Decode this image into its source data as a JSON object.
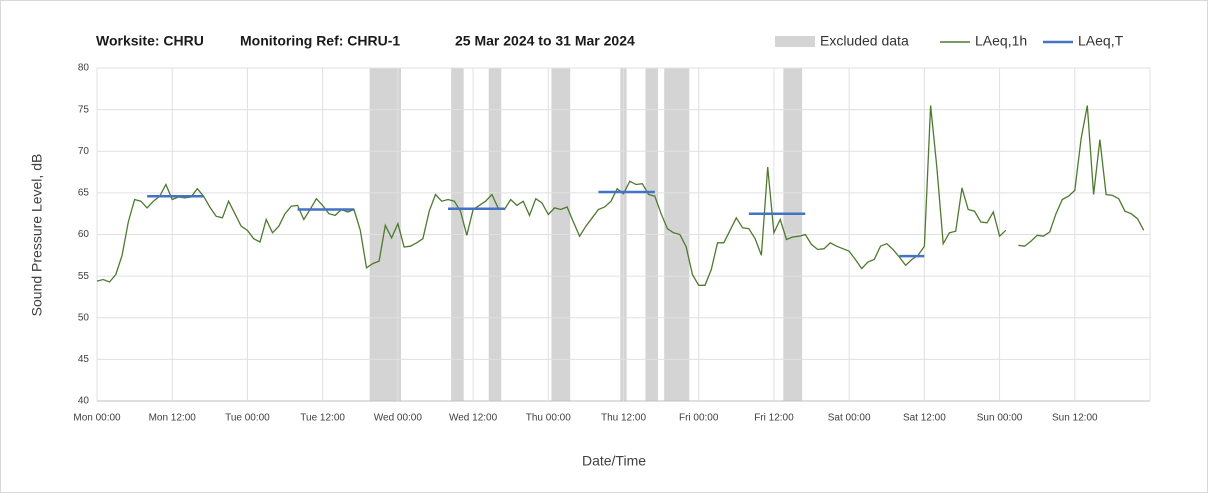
{
  "chart_data": {
    "type": "line",
    "title_parts": [
      "Worksite: CHRU",
      "Monitoring Ref: CHRU-1",
      "25 Mar 2024 to 31 Mar 2024"
    ],
    "x_label": "Date/Time",
    "y_label": "Sound Pressure Level, dB",
    "xlim": [
      0,
      168
    ],
    "xticks": [
      {
        "value": 0,
        "label": "Mon 00:00"
      },
      {
        "value": 12,
        "label": "Mon 12:00"
      },
      {
        "value": 24,
        "label": "Tue 00:00"
      },
      {
        "value": 36,
        "label": "Tue 12:00"
      },
      {
        "value": 48,
        "label": "Wed 00:00"
      },
      {
        "value": 60,
        "label": "Wed 12:00"
      },
      {
        "value": 72,
        "label": "Thu 00:00"
      },
      {
        "value": 84,
        "label": "Thu 12:00"
      },
      {
        "value": 96,
        "label": "Fri 00:00"
      },
      {
        "value": 108,
        "label": "Fri 12:00"
      },
      {
        "value": 120,
        "label": "Sat 00:00"
      },
      {
        "value": 132,
        "label": "Sat 12:00"
      },
      {
        "value": 144,
        "label": "Sun 00:00"
      },
      {
        "value": 156,
        "label": "Sun 12:00"
      }
    ],
    "ylim": [
      40,
      80
    ],
    "yticks": [
      40,
      45,
      50,
      55,
      60,
      65,
      70,
      75,
      80
    ],
    "grid": true,
    "excluded": {
      "name": "Excluded data",
      "color": "#d4d4d4",
      "ranges": [
        [
          43.5,
          48.5
        ],
        [
          56.5,
          58.5
        ],
        [
          62.5,
          64.5
        ],
        [
          72.5,
          75.5
        ],
        [
          83.5,
          84.5
        ],
        [
          87.5,
          89.5
        ],
        [
          90.5,
          94.5
        ],
        [
          109.5,
          112.5
        ]
      ]
    },
    "series": [
      {
        "name": "LAeq,1h",
        "color": "#4e7a2e",
        "x": [
          0,
          1,
          2,
          3,
          4,
          5,
          6,
          7,
          8,
          9,
          10,
          11,
          12,
          13,
          14,
          15,
          16,
          17,
          18,
          19,
          20,
          21,
          22,
          23,
          24,
          25,
          26,
          27,
          28,
          29,
          30,
          31,
          32,
          33,
          34,
          35,
          36,
          37,
          38,
          39,
          40,
          41,
          42,
          43,
          44,
          45,
          46,
          47,
          48,
          49,
          50,
          51,
          52,
          53,
          54,
          55,
          56,
          57,
          58,
          59,
          60,
          61,
          62,
          63,
          64,
          65,
          66,
          67,
          68,
          69,
          70,
          71,
          72,
          73,
          74,
          75,
          76,
          77,
          78,
          79,
          80,
          81,
          82,
          83,
          84,
          85,
          86,
          87,
          88,
          89,
          90,
          91,
          92,
          93,
          94,
          95,
          96,
          97,
          98,
          99,
          100,
          101,
          102,
          103,
          104,
          105,
          106,
          107,
          108,
          109,
          110,
          111,
          112,
          113,
          114,
          115,
          116,
          117,
          118,
          119,
          120,
          121,
          122,
          123,
          124,
          125,
          126,
          127,
          128,
          129,
          130,
          131,
          132,
          133,
          134,
          135,
          136,
          137,
          138,
          139,
          140,
          141,
          142,
          143,
          144,
          145,
          146,
          147,
          148,
          149,
          150,
          151,
          152,
          153,
          154,
          155,
          156,
          157,
          158,
          159,
          160,
          161,
          162,
          163,
          164,
          165,
          166,
          167
        ],
        "values": [
          54.4,
          54.6,
          54.3,
          55.2,
          57.5,
          61.5,
          64.2,
          64.0,
          63.2,
          64.0,
          64.6,
          66.0,
          64.2,
          64.5,
          64.4,
          64.5,
          65.5,
          64.6,
          63.3,
          62.2,
          62.0,
          64.0,
          62.5,
          61.0,
          60.5,
          59.5,
          59.1,
          61.8,
          60.2,
          61.0,
          62.5,
          63.4,
          63.5,
          61.8,
          63.0,
          64.3,
          63.5,
          62.5,
          62.3,
          63.0,
          62.7,
          63.0,
          60.5,
          56.0,
          56.5,
          56.8,
          61.1,
          59.6,
          61.3,
          58.5,
          58.6,
          59.0,
          59.5,
          62.8,
          64.8,
          64.0,
          64.2,
          64.0,
          62.8,
          59.9,
          63.0,
          63.5,
          64.0,
          64.8,
          63.2,
          63.0,
          64.2,
          63.5,
          64.0,
          62.3,
          64.3,
          63.8,
          62.4,
          63.2,
          63.0,
          63.3,
          61.5,
          59.8,
          61.0,
          62.0,
          63.0,
          63.3,
          64.0,
          65.5,
          64.9,
          66.4,
          66.0,
          66.1,
          64.8,
          64.6,
          62.5,
          60.7,
          60.2,
          60.0,
          58.5,
          55.2,
          53.9,
          53.9,
          55.8,
          59.0,
          59.0,
          60.5,
          62.0,
          60.8,
          60.7,
          59.5,
          57.5,
          68.1,
          60.2,
          61.8,
          59.4,
          59.7,
          59.8,
          60.0,
          58.8,
          58.2,
          58.3,
          59.0,
          58.6,
          58.3,
          58.0,
          57.0,
          55.9,
          56.7,
          57.0,
          58.6,
          58.9,
          58.2,
          57.3,
          56.3,
          57.0,
          57.5,
          58.6,
          75.5,
          68.0,
          58.9,
          60.2,
          60.4,
          65.6,
          63.0,
          62.8,
          61.5,
          61.4,
          62.7,
          59.8,
          60.5,
          null,
          58.7,
          58.6,
          59.2,
          59.9,
          59.8,
          60.3,
          62.5,
          64.2,
          64.6,
          65.3,
          71.5,
          75.5,
          64.8,
          71.4,
          64.8,
          64.7,
          64.3,
          62.8,
          62.5,
          61.9,
          60.5
        ]
      },
      {
        "name": "LAeq,T",
        "color": "#4472c4",
        "segments": [
          {
            "x": [
              8,
              17
            ],
            "value": 64.6
          },
          {
            "x": [
              32,
              41
            ],
            "value": 63.0
          },
          {
            "x": [
              56,
              65
            ],
            "value": 63.1
          },
          {
            "x": [
              80,
              89
            ],
            "value": 65.1
          },
          {
            "x": [
              104,
              113
            ],
            "value": 62.5
          },
          {
            "x": [
              128,
              132
            ],
            "value": 57.4
          }
        ]
      }
    ]
  }
}
